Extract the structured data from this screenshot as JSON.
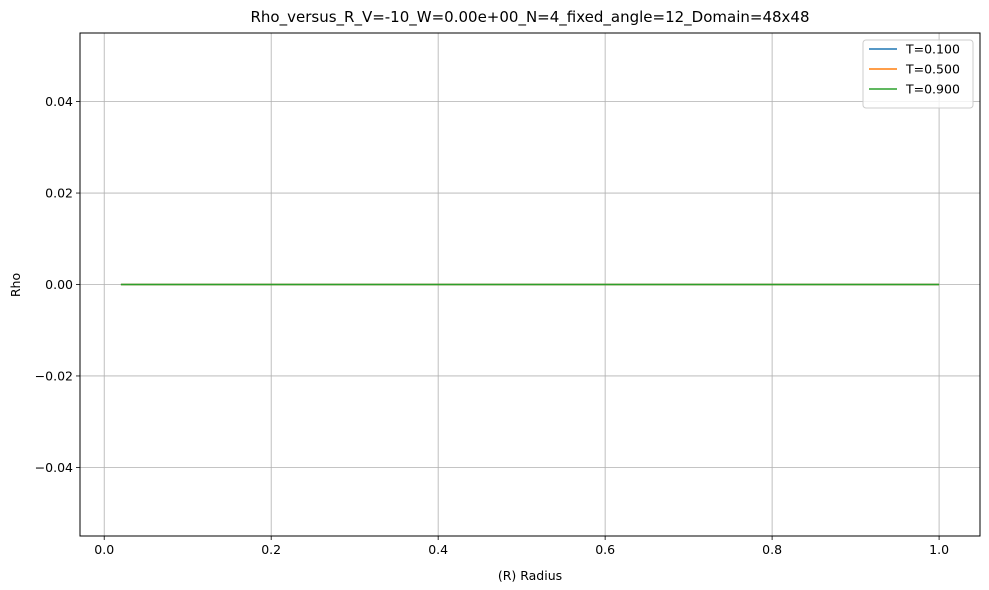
{
  "chart_data": {
    "type": "line",
    "title": "Rho_versus_R_V=-10_W=0.00e+00_N=4_fixed_angle=12_Domain=48x48",
    "xlabel": "(R) Radius",
    "ylabel": "Rho",
    "xlim": [
      -0.029,
      1.049
    ],
    "ylim": [
      -0.055,
      0.055
    ],
    "xticks": [
      0.0,
      0.2,
      0.4,
      0.6,
      0.8,
      1.0
    ],
    "xtick_labels": [
      "0.0",
      "0.2",
      "0.4",
      "0.6",
      "0.8",
      "1.0"
    ],
    "yticks": [
      -0.04,
      -0.02,
      0.0,
      0.02,
      0.04
    ],
    "ytick_labels": [
      "−0.04",
      "−0.02",
      "0.00",
      "0.02",
      "0.04"
    ],
    "grid": true,
    "legend_position": "top-right",
    "series": [
      {
        "name": "T=0.100",
        "color": "#1f77b4",
        "x": [
          0.02,
          1.0
        ],
        "y": [
          0.0,
          0.0
        ]
      },
      {
        "name": "T=0.500",
        "color": "#ff7f0e",
        "x": [
          0.02,
          1.0
        ],
        "y": [
          0.0,
          0.0
        ]
      },
      {
        "name": "T=0.900",
        "color": "#2ca02c",
        "x": [
          0.02,
          1.0
        ],
        "y": [
          0.0,
          0.0
        ]
      }
    ]
  }
}
